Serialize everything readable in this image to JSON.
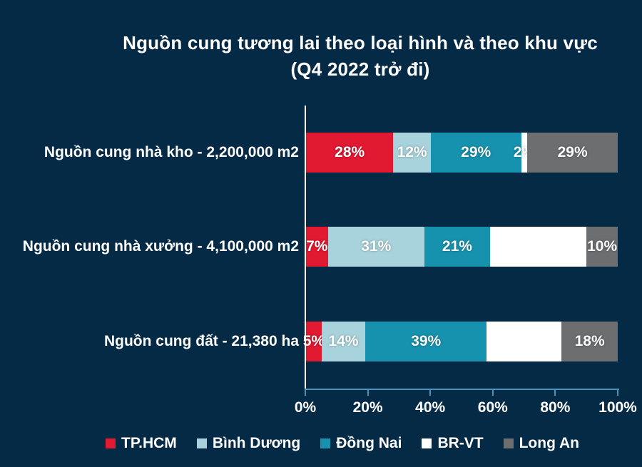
{
  "title": {
    "line1": "Nguồn cung tương lai theo loại hình và theo khu vực",
    "line2": "(Q4 2022 trở đi)"
  },
  "colors": {
    "background": "#052A45",
    "x_axis_line": "#4A94BA",
    "y_axis_line": "#FFFFFF",
    "text": "#FFFFFF"
  },
  "chart_data": {
    "type": "bar",
    "orientation": "horizontal",
    "stacked": true,
    "unit": "%",
    "xlim": [
      0,
      100
    ],
    "x_ticks": [
      "0%",
      "20%",
      "40%",
      "60%",
      "80%",
      "100%"
    ],
    "grid": false,
    "legend_position": "bottom",
    "categories": [
      "Nguồn cung nhà kho - 2,200,000 m2",
      "Nguồn cung nhà xưởng - 4,100,000 m2",
      "Nguồn cung đất - 21,380 ha"
    ],
    "series": [
      {
        "name": "TP.HCM",
        "color": "#E11931",
        "values": [
          28,
          7,
          5
        ],
        "labels": [
          "28%",
          "7%",
          "5%"
        ]
      },
      {
        "name": "Bình Dương",
        "color": "#A9D3DC",
        "values": [
          12,
          31,
          14
        ],
        "labels": [
          "12%",
          "31%",
          "14%"
        ]
      },
      {
        "name": "Đồng Nai",
        "color": "#1792AE",
        "values": [
          29,
          21,
          39
        ],
        "labels": [
          "29%",
          "21%",
          "39%"
        ]
      },
      {
        "name": "BR-VT",
        "color": "#FFFFFF",
        "values": [
          2,
          31,
          24
        ],
        "labels": [
          "2%",
          "",
          ""
        ]
      },
      {
        "name": "Long An",
        "color": "#6D6E70",
        "values": [
          29,
          10,
          18
        ],
        "labels": [
          "29%",
          "10%",
          "18%"
        ]
      }
    ]
  }
}
